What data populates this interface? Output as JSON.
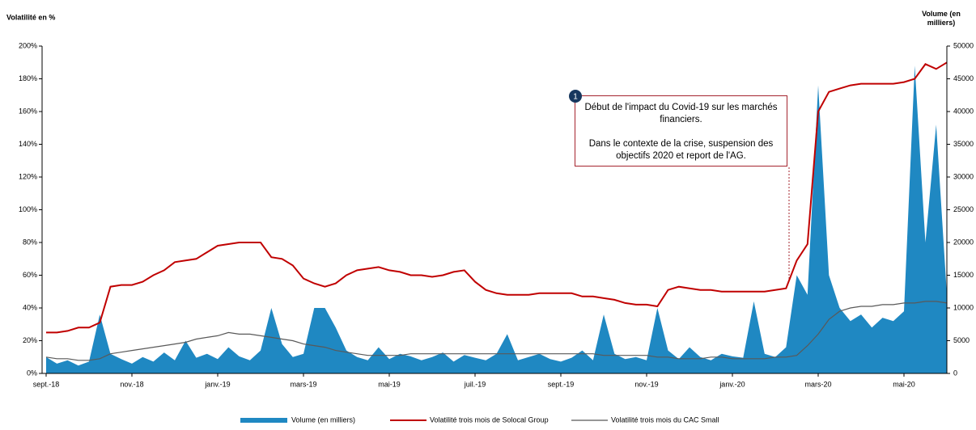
{
  "chart_data": {
    "type": "line",
    "y_label": "Volatilité en %",
    "y2_label": "Volume (en milliers)",
    "annotation": {
      "number": "1",
      "lines": [
        "Début de l'impact du Covid-19 sur les marchés financiers.",
        "Dans le contexte de la crise, suspension des objectifs 2020 et report de l'AG."
      ]
    },
    "categories": [
      "sept.-18",
      null,
      null,
      null,
      null,
      null,
      null,
      null,
      "nov.-18",
      null,
      null,
      null,
      null,
      null,
      null,
      null,
      "janv.-19",
      null,
      null,
      null,
      null,
      null,
      null,
      null,
      "mars-19",
      null,
      null,
      null,
      null,
      null,
      null,
      null,
      "mai-19",
      null,
      null,
      null,
      null,
      null,
      null,
      null,
      "juil.-19",
      null,
      null,
      null,
      null,
      null,
      null,
      null,
      "sept.-19",
      null,
      null,
      null,
      null,
      null,
      null,
      null,
      "nov.-19",
      null,
      null,
      null,
      null,
      null,
      null,
      null,
      "janv.-20",
      null,
      null,
      null,
      null,
      null,
      null,
      null,
      "mars-20",
      null,
      null,
      null,
      null,
      null,
      null,
      null,
      "mai-20",
      null,
      null,
      null,
      null
    ],
    "series": [
      {
        "name": "Volume (en milliers)",
        "type": "area",
        "axis": "y2",
        "color": "#1f88c2",
        "values": [
          2500,
          1500,
          2000,
          1200,
          1800,
          9000,
          3000,
          2200,
          1500,
          2500,
          1800,
          3200,
          2000,
          5000,
          2400,
          3000,
          2200,
          4000,
          2600,
          2000,
          3500,
          10000,
          4500,
          2500,
          3000,
          10000,
          10000,
          7000,
          3500,
          2500,
          2000,
          4000,
          2200,
          3000,
          2600,
          2000,
          2500,
          3200,
          1800,
          2800,
          2400,
          2000,
          3000,
          6000,
          2000,
          2500,
          3000,
          2200,
          1800,
          2400,
          3500,
          2000,
          9000,
          3000,
          2200,
          2500,
          2000,
          10000,
          3500,
          2200,
          4000,
          2500,
          2000,
          3000,
          2600,
          2400,
          11000,
          3000,
          2500,
          4000,
          15000,
          12000,
          44000,
          15000,
          10000,
          8000,
          9000,
          7000,
          8500,
          8000,
          9500,
          47000,
          20000,
          38000,
          12000
        ]
      },
      {
        "name": "Volatilité trois mois de Solocal Group",
        "type": "line",
        "axis": "y",
        "color": "#c00000",
        "values": [
          25,
          25,
          26,
          28,
          28,
          31,
          53,
          54,
          54,
          56,
          60,
          63,
          68,
          69,
          70,
          74,
          78,
          79,
          80,
          80,
          80,
          71,
          70,
          66,
          58,
          55,
          53,
          55,
          60,
          63,
          64,
          65,
          63,
          62,
          60,
          60,
          59,
          60,
          62,
          63,
          56,
          51,
          49,
          48,
          48,
          48,
          49,
          49,
          49,
          49,
          47,
          47,
          46,
          45,
          43,
          42,
          42,
          41,
          51,
          53,
          52,
          51,
          51,
          50,
          50,
          50,
          50,
          50,
          51,
          52,
          69,
          79,
          160,
          172,
          174,
          176,
          177,
          177,
          177,
          177,
          178,
          180,
          189,
          186,
          190
        ]
      },
      {
        "name": "Volatilité trois mois du CAC Small",
        "type": "line",
        "axis": "y",
        "color": "#595959",
        "values": [
          10,
          9,
          9,
          8,
          8,
          9,
          12,
          13,
          14,
          15,
          16,
          17,
          18,
          19,
          21,
          22,
          23,
          25,
          24,
          24,
          23,
          22,
          21,
          20,
          18,
          17,
          16,
          14,
          13,
          12,
          11,
          11,
          11,
          11,
          12,
          12,
          12,
          12,
          12,
          12,
          12,
          12,
          12,
          12,
          12,
          12,
          12,
          12,
          12,
          12,
          12,
          12,
          11,
          11,
          11,
          11,
          11,
          10,
          10,
          9,
          9,
          9,
          10,
          10,
          9,
          9,
          9,
          9,
          10,
          10,
          11,
          17,
          24,
          33,
          38,
          40,
          41,
          41,
          42,
          42,
          43,
          43,
          44,
          44,
          43
        ]
      }
    ],
    "ylim": [
      0,
      200
    ],
    "yticks": [
      {
        "value": 0,
        "label": "0%"
      },
      {
        "value": 20,
        "label": "20%"
      },
      {
        "value": 40,
        "label": "40%"
      },
      {
        "value": 60,
        "label": "60%"
      },
      {
        "value": 80,
        "label": "80%"
      },
      {
        "value": 100,
        "label": "100%"
      },
      {
        "value": 120,
        "label": "120%"
      },
      {
        "value": 140,
        "label": "140%"
      },
      {
        "value": 160,
        "label": "160%"
      },
      {
        "value": 180,
        "label": "180%"
      },
      {
        "value": 200,
        "label": "200%"
      }
    ],
    "y2lim": [
      0,
      50000
    ],
    "y2ticks": [
      0,
      5000,
      10000,
      15000,
      20000,
      25000,
      30000,
      35000,
      40000,
      45000,
      50000
    ]
  }
}
